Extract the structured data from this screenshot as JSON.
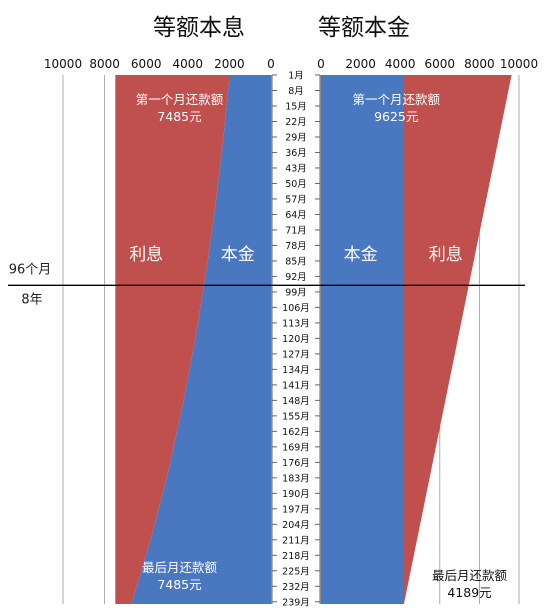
{
  "titles": {
    "left": "等额本息",
    "right": "等额本金"
  },
  "side_labels": {
    "months": "96个月",
    "years": "8年"
  },
  "chart_data": [
    {
      "type": "area",
      "title": "等额本息",
      "orientation": "horizontal-reversed",
      "xlim": [
        0,
        10000
      ],
      "x_ticks": [
        "10000",
        "8000",
        "6000",
        "4000",
        "2000",
        "0"
      ],
      "month_labels": [
        "1月",
        "8月",
        "15月",
        "22月",
        "29月",
        "36月",
        "43月",
        "50月",
        "57月",
        "64月",
        "71月",
        "78月",
        "85月",
        "92月",
        "99月",
        "106月",
        "113月",
        "120月",
        "127月",
        "134月",
        "141月",
        "148月",
        "155月",
        "162月",
        "169月",
        "176月",
        "183月",
        "190月",
        "197月",
        "204月",
        "211月",
        "218月",
        "225月",
        "232月",
        "239月"
      ],
      "months": [
        1,
        240
      ],
      "total_payment": 7485,
      "principal": {
        "name": "本金",
        "months": [
          1,
          30,
          60,
          90,
          120,
          150,
          180,
          210,
          240
        ],
        "values": [
          1985,
          2295,
          2675,
          3120,
          3635,
          4240,
          4940,
          5760,
          6710
        ]
      },
      "interest": {
        "name": "利息",
        "months": [
          1,
          30,
          60,
          90,
          120,
          150,
          180,
          210,
          240
        ],
        "values": [
          5500,
          5190,
          4810,
          4365,
          3850,
          3245,
          2545,
          1725,
          775
        ]
      },
      "annotations": [
        {
          "text": "第一个月还款额",
          "value": "7485元"
        },
        {
          "text": "最后月还款额",
          "value": "7485元"
        }
      ]
    },
    {
      "type": "area",
      "title": "等额本金",
      "orientation": "horizontal",
      "xlim": [
        0,
        10000
      ],
      "x_ticks": [
        "0",
        "2000",
        "4000",
        "6000",
        "8000",
        "10000"
      ],
      "months": [
        1,
        240
      ],
      "principal": {
        "name": "本金",
        "value": 4167
      },
      "interest": {
        "name": "利息",
        "months": [
          1,
          240
        ],
        "values": [
          5458,
          22
        ]
      },
      "total_payment": {
        "months": [
          1,
          240
        ],
        "values": [
          9625,
          4189
        ]
      },
      "annotations": [
        {
          "text": "第一个月还款额",
          "value": "9625元"
        },
        {
          "text": "最后月还款额",
          "value": "4189元"
        }
      ]
    }
  ],
  "divider_month": 96,
  "colors": {
    "principal": "#4a78c0",
    "interest": "#c0504d",
    "line": "#000000",
    "grid": "#999999"
  },
  "labels": {
    "principal": "本金",
    "interest": "利息"
  }
}
